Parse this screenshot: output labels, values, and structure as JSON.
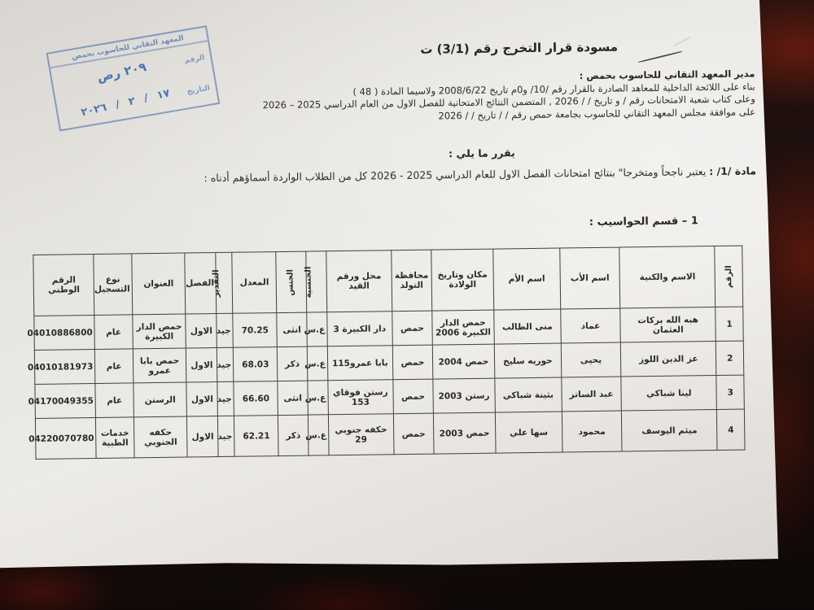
{
  "title": "مسودة قرار التخرج رقم (3/1) ت",
  "stamp": {
    "institute": "المعهد التقاني للحاسوب بحمص",
    "number_label": "الرقم",
    "number_value": "٢٠٩ رص",
    "date_label": "التاريخ",
    "date_value": "١٧ / ٢ / ٢٠٢٦",
    "ink_color": "#4a76b2"
  },
  "header": {
    "line1": "مدير المعهد التقاني للحاسوب بحمص :",
    "line2": "بناء على اللائحة الداخلية للمعاهد الصادرة بالقرار رقم /10/ و0م تاريخ 2008/6/22 ولاسيما المادة ( 48 )",
    "line3": "وعلى كتاب شعبة الامتحانات رقم       / و تاريخ /    / 2026 , المتضمن النتائج الامتحانية للفصل الاول من العام الدراسي 2025 – 2026",
    "line4": "على موافقة مجلس المعهد التقاني للحاسوب بجامعة حمص رقم / / تاريخ /    / 2026"
  },
  "decree": {
    "intro": "يقرر ما يلي :",
    "article_label": "مادة /1/ :",
    "article_text": "يعتبر ناجحاً ومتخرجا\" بنتائج امتحانات الفصل الاول للعام الدراسي 2025 - 2026  كل من الطلاب الواردة أسماؤهم أدناه :"
  },
  "section": {
    "heading": "1 – قسم الحواسيب :"
  },
  "table": {
    "headers": [
      "الرقم",
      "الاسم والكنية",
      "اسم الأب",
      "اسم الأم",
      "مكان وتاريخ الولادة",
      "محافظة التولد",
      "محل ورقم القيد",
      "الجنسية",
      "الجنس",
      "المعدل",
      "التقدير",
      "الفصل",
      "العنوان",
      "نوع التسجيل",
      "الرقم الوطني"
    ],
    "vertical_headers": [
      0,
      7,
      8,
      10
    ],
    "rows": [
      {
        "cells": [
          "1",
          "هبه الله بركات العثمان",
          "عماد",
          "منى الطالب",
          "حمص الدار الكبيرة 2006",
          "حمص",
          "دار الكبيرة 3",
          "ع.س",
          "انثى",
          "70.25",
          "جيد",
          "الاول",
          "حمص الدار الكبيرة",
          "عام",
          "04010886800"
        ]
      },
      {
        "cells": [
          "2",
          "عز الدين اللوز",
          "يحيى",
          "حوريه سليخ",
          "حمص 2004",
          "حمص",
          "بابا عمرو115",
          "ع.س",
          "ذكر",
          "68.03",
          "جيد",
          "الاول",
          "حمص بابا عمرو",
          "عام",
          "04010181973"
        ]
      },
      {
        "cells": [
          "3",
          "لينا شباكي",
          "عبد الساتر",
          "بثينة شباكي",
          "رستن 2003",
          "حمص",
          "رستن فوقاي 153",
          "ع.س",
          "انثى",
          "66.60",
          "جيد",
          "الاول",
          "الرستن",
          "عام",
          "04170049355"
        ]
      },
      {
        "cells": [
          "4",
          "ميثم اليوسف",
          "محمود",
          "سها علي",
          "حمص 2003",
          "حمص",
          "حكفه جنوبي 29",
          "ع.س",
          "ذكر",
          "62.21",
          "جيد",
          "الاول",
          "حكفه الجنوبي",
          "خدمات الطبية",
          "04220070780"
        ]
      }
    ]
  },
  "colors": {
    "paper": "#e6e4e0",
    "table_background": "#1a0e0c",
    "stamp_ink": "#4a76b2",
    "text": "#2e2c29"
  }
}
